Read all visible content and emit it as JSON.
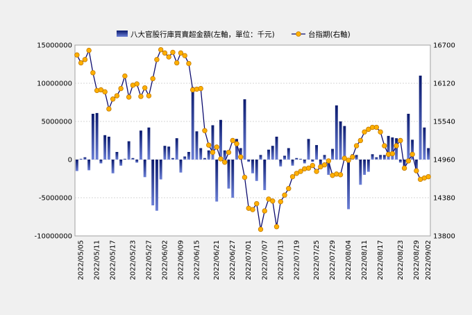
{
  "chart_data": {
    "type": "bar+line",
    "legend": {
      "placement": "top-center",
      "bar_label": "八大官股行庫買賣超金額(左軸，單位：千元)",
      "line_label": "台指期(右軸)"
    },
    "left_axis": {
      "min": -10000000,
      "max": 15000000,
      "ticks": [
        "15000000",
        "10000000",
        "5000000",
        "0",
        "-5000000",
        "-10000000"
      ],
      "tick_values": [
        15000000,
        10000000,
        5000000,
        0,
        -5000000,
        -10000000
      ]
    },
    "right_axis": {
      "min": 13800,
      "max": 16700,
      "ticks": [
        "16700",
        "16120",
        "15540",
        "14960",
        "14380",
        "13800"
      ],
      "tick_values": [
        16700,
        16120,
        15540,
        14960,
        14380,
        13800
      ]
    },
    "x_tick_labels": [
      "2022/05/05",
      "2022/05/11",
      "2022/05/17",
      "2022/05/23",
      "2022/05/27",
      "2022/06/02",
      "2022/06/09",
      "2022/06/15",
      "2022/06/21",
      "2022/06/27",
      "2022/07/01",
      "2022/07/07",
      "2022/07/13",
      "2022/07/19",
      "2022/07/25",
      "2022/07/29",
      "2022/08/04",
      "2022/08/11",
      "2022/08/17",
      "2022/08/23",
      "2022/08/29",
      "2022/09/02"
    ],
    "grid": "horizontal",
    "colors": {
      "bar_top": "#0a1a6e",
      "bar_bottom": "#6b7fd6",
      "line": "#0a0a6e",
      "marker_fill": "#ffb000",
      "marker_stroke": "#c07800",
      "plot_background": "#ffffff",
      "gridline": "#c8c8c8"
    },
    "bar_values": [
      -1500000,
      100000,
      300000,
      -1400000,
      6000000,
      6100000,
      -500000,
      3200000,
      3000000,
      -1800000,
      1000000,
      -800000,
      100000,
      2400000,
      200000,
      -400000,
      3800000,
      -2300000,
      4200000,
      -6000000,
      -6700000,
      -2600000,
      1800000,
      1700000,
      200000,
      2800000,
      -1700000,
      400000,
      1000000,
      9500000,
      3700000,
      1500000,
      200000,
      1200000,
      4500000,
      -5500000,
      5200000,
      1200000,
      -3800000,
      -5000000,
      2700000,
      1500000,
      7900000,
      -300000,
      -1800000,
      -2800000,
      600000,
      -4000000,
      1300000,
      1800000,
      3000000,
      -900000,
      500000,
      1500000,
      -800000,
      200000,
      100000,
      -500000,
      2700000,
      -300000,
      1900000,
      -1100000,
      600000,
      -2000000,
      1400000,
      7100000,
      5000000,
      4400000,
      -6500000,
      700000,
      600000,
      -3300000,
      -2000000,
      -1600000,
      700000,
      300000,
      600000,
      600000,
      3100000,
      2900000,
      2800000,
      -400000,
      -1200000,
      6000000,
      2600000,
      -1600000,
      11000000,
      4200000,
      1500000
    ],
    "line_values": [
      16550,
      16430,
      16480,
      16620,
      16280,
      16010,
      16020,
      15990,
      15730,
      15880,
      15930,
      16040,
      16230,
      15910,
      16090,
      16110,
      15920,
      16050,
      15930,
      16190,
      16480,
      16630,
      16580,
      16520,
      16590,
      16430,
      16580,
      16540,
      16420,
      16020,
      16030,
      16040,
      15400,
      15180,
      15070,
      15150,
      14970,
      14920,
      15070,
      15250,
      15200,
      15000,
      14690,
      14220,
      14200,
      14290,
      13900,
      14180,
      14360,
      14330,
      13940,
      14320,
      14420,
      14520,
      14700,
      14750,
      14780,
      14820,
      14830,
      14870,
      14780,
      14850,
      14880,
      14940,
      14720,
      14740,
      14730,
      14980,
      14950,
      15000,
      15170,
      15250,
      15380,
      15420,
      15450,
      15450,
      15380,
      15170,
      15040,
      15050,
      15170,
      15250,
      14830,
      14940,
      15040,
      14790,
      14660,
      14680,
      14700
    ]
  }
}
